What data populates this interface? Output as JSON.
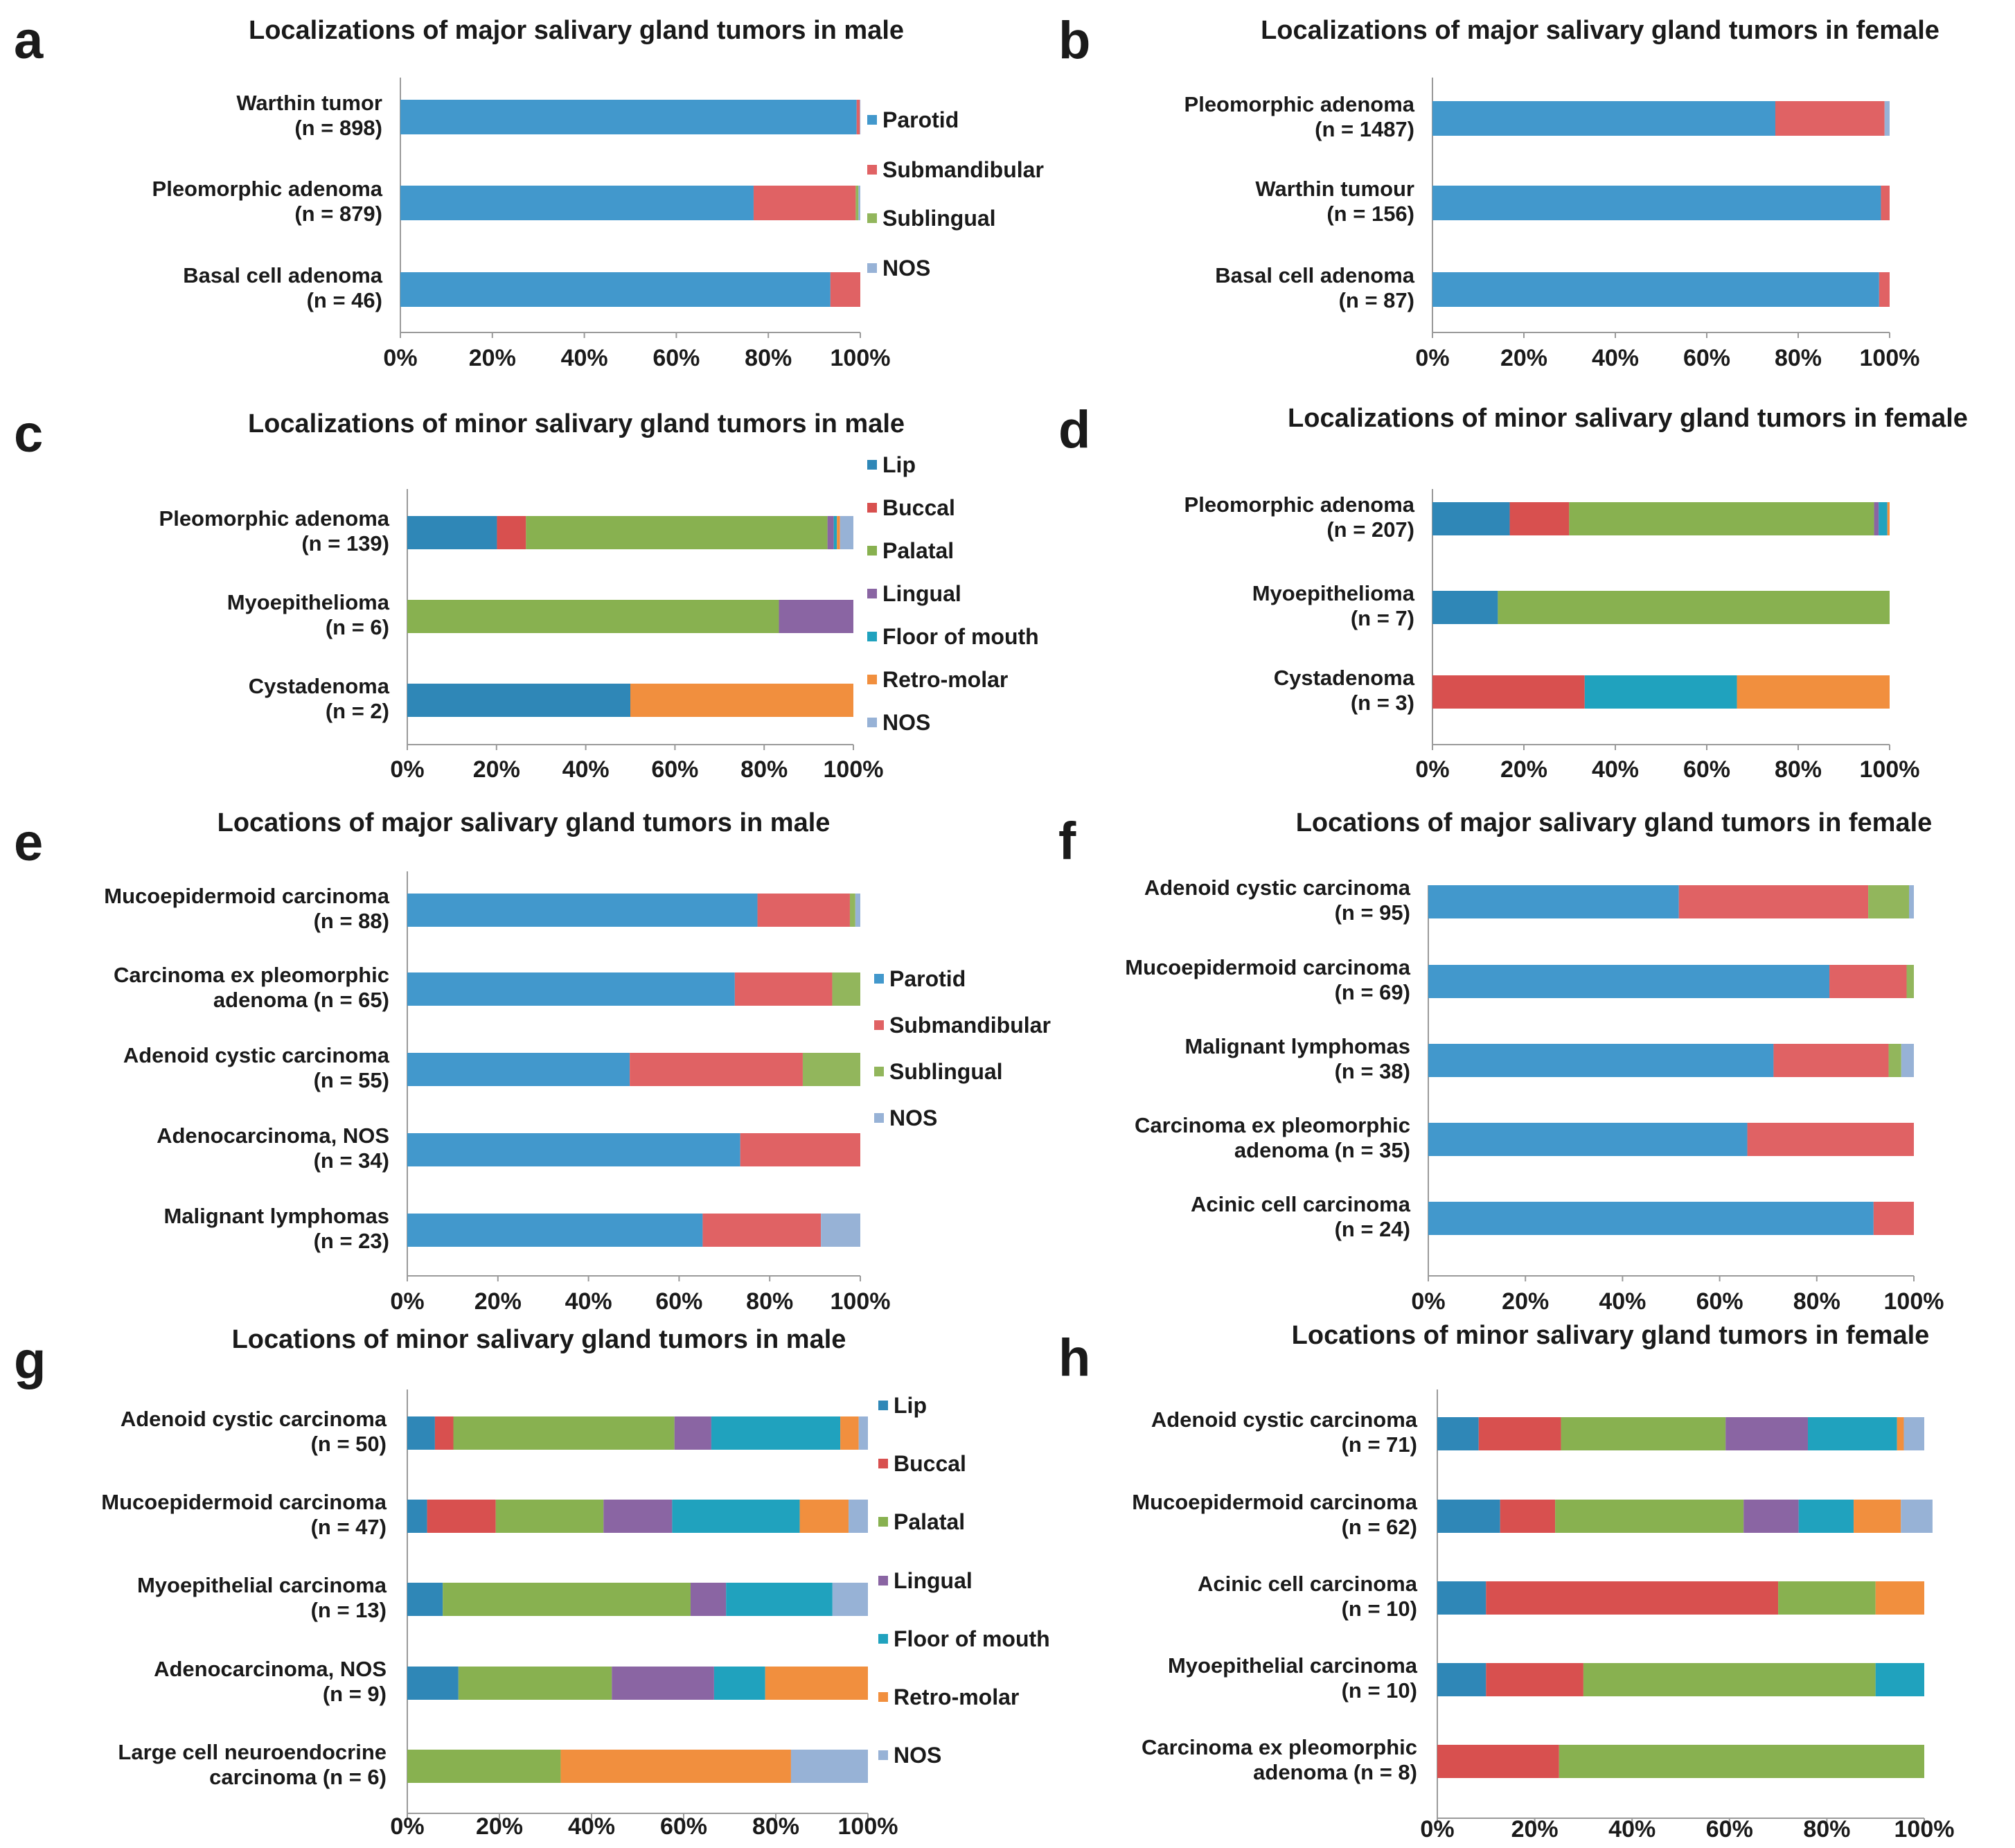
{
  "figure_name": "salivary-gland-tumor-localization-figure",
  "colors": {
    "Parotid": "#4298cc",
    "Submandibular": "#e06264",
    "Sublingual": "#92b65c",
    "Lip": "#2f87b7",
    "Buccal": "#d8504f",
    "Palatal": "#88b150",
    "Lingual": "#8a65a3",
    "Floor of mouth": "#20a2be",
    "Retro-molar": "#f18f3e",
    "NOS": "#97b2d6"
  },
  "chart_data": [
    {
      "panel": "a",
      "type": "bar",
      "stacked": true,
      "orientation": "horizontal",
      "title": "Localizations of major salivary gland tumors in male",
      "categories": [
        [
          "Warthin tumor",
          "(n = 898)"
        ],
        [
          "Pleomorphic adenoma",
          "(n = 879)"
        ],
        [
          "Basal cell adenoma",
          "(n = 46)"
        ]
      ],
      "xticks": [
        "0%",
        "20%",
        "40%",
        "60%",
        "80%",
        "100%"
      ],
      "xlim": [
        0,
        100
      ],
      "legend": [
        "Parotid",
        "Submandibular",
        "Sublingual",
        "NOS"
      ],
      "series": [
        {
          "name": "Parotid",
          "values": [
            99.2,
            76.8,
            93.5
          ]
        },
        {
          "name": "Submandibular",
          "values": [
            0.7,
            22.2,
            6.5
          ]
        },
        {
          "name": "Sublingual",
          "values": [
            0,
            0.6,
            0
          ]
        },
        {
          "name": "NOS",
          "values": [
            0.1,
            0.4,
            0
          ]
        }
      ]
    },
    {
      "panel": "b",
      "type": "bar",
      "stacked": true,
      "orientation": "horizontal",
      "title": "Localizations of major salivary gland tumors in female",
      "categories": [
        [
          "Pleomorphic adenoma",
          "(n = 1487)"
        ],
        [
          "Warthin tumour",
          "(n = 156)"
        ],
        [
          "Basal cell adenoma",
          "(n = 87)"
        ]
      ],
      "xticks": [
        "0%",
        "20%",
        "40%",
        "60%",
        "80%",
        "100%"
      ],
      "xlim": [
        0,
        100
      ],
      "legend": [],
      "series": [
        {
          "name": "Parotid",
          "values": [
            75.0,
            98.1,
            97.7
          ]
        },
        {
          "name": "Submandibular",
          "values": [
            23.9,
            1.9,
            2.3
          ]
        },
        {
          "name": "Sublingual",
          "values": [
            0,
            0,
            0
          ]
        },
        {
          "name": "NOS",
          "values": [
            1.1,
            0,
            0
          ]
        }
      ]
    },
    {
      "panel": "c",
      "type": "bar",
      "stacked": true,
      "orientation": "horizontal",
      "title": "Localizations of minor salivary gland tumors in male",
      "categories": [
        [
          "Pleomorphic adenoma",
          "(n = 139)"
        ],
        [
          "Myoepithelioma",
          "(n = 6)"
        ],
        [
          "Cystadenoma",
          "(n = 2)"
        ]
      ],
      "xticks": [
        "0%",
        "20%",
        "40%",
        "60%",
        "80%",
        "100%"
      ],
      "xlim": [
        0,
        100
      ],
      "legend": [
        "Lip",
        "Buccal",
        "Palatal",
        "Lingual",
        "Floor of mouth",
        "Retro-molar",
        "NOS"
      ],
      "series": [
        {
          "name": "Lip",
          "values": [
            20.1,
            0,
            50
          ]
        },
        {
          "name": "Buccal",
          "values": [
            6.5,
            0,
            0
          ]
        },
        {
          "name": "Palatal",
          "values": [
            67.6,
            83.3,
            0
          ]
        },
        {
          "name": "Lingual",
          "values": [
            1.4,
            16.7,
            0
          ]
        },
        {
          "name": "Floor of mouth",
          "values": [
            0.7,
            0,
            0
          ]
        },
        {
          "name": "Retro-molar",
          "values": [
            0.7,
            0,
            50
          ]
        },
        {
          "name": "NOS",
          "values": [
            3.0,
            0,
            0
          ]
        }
      ]
    },
    {
      "panel": "d",
      "type": "bar",
      "stacked": true,
      "orientation": "horizontal",
      "title": "Localizations of minor salivary gland tumors in female",
      "categories": [
        [
          "Pleomorphic adenoma",
          "(n = 207)"
        ],
        [
          "Myoepithelioma",
          "(n = 7)"
        ],
        [
          "Cystadenoma",
          "(n = 3)"
        ]
      ],
      "xticks": [
        "0%",
        "20%",
        "40%",
        "60%",
        "80%",
        "100%"
      ],
      "xlim": [
        0,
        100
      ],
      "legend": [],
      "series": [
        {
          "name": "Lip",
          "values": [
            16.9,
            14.3,
            0
          ]
        },
        {
          "name": "Buccal",
          "values": [
            13.0,
            0,
            33.3
          ]
        },
        {
          "name": "Palatal",
          "values": [
            66.7,
            85.7,
            0
          ]
        },
        {
          "name": "Lingual",
          "values": [
            1.0,
            0,
            0
          ]
        },
        {
          "name": "Floor of mouth",
          "values": [
            1.9,
            0,
            33.3
          ]
        },
        {
          "name": "Retro-molar",
          "values": [
            0.5,
            0,
            33.4
          ]
        },
        {
          "name": "NOS",
          "values": [
            0,
            0,
            0
          ]
        }
      ]
    },
    {
      "panel": "e",
      "type": "bar",
      "stacked": true,
      "orientation": "horizontal",
      "title": "Locations of major salivary gland tumors in male",
      "categories": [
        [
          "Mucoepidermoid carcinoma",
          "(n = 88)"
        ],
        [
          "Carcinoma ex pleomorphic",
          "adenoma (n = 65)"
        ],
        [
          "Adenoid cystic carcinoma",
          "(n = 55)"
        ],
        [
          "Adenocarcinoma, NOS",
          "(n = 34)"
        ],
        [
          "Malignant lymphomas",
          "(n = 23)"
        ]
      ],
      "xticks": [
        "0%",
        "20%",
        "40%",
        "60%",
        "80%",
        "100%"
      ],
      "xlim": [
        0,
        100
      ],
      "legend": [
        "Parotid",
        "Submandibular",
        "Sublingual",
        "NOS"
      ],
      "series": [
        {
          "name": "Parotid",
          "values": [
            77.3,
            72.3,
            49.1,
            73.5,
            65.2
          ]
        },
        {
          "name": "Submandibular",
          "values": [
            20.4,
            21.5,
            38.2,
            26.5,
            26.1
          ]
        },
        {
          "name": "Sublingual",
          "values": [
            1.2,
            6.2,
            12.7,
            0,
            0
          ]
        },
        {
          "name": "NOS",
          "values": [
            1.1,
            0,
            0,
            0,
            8.7
          ]
        }
      ]
    },
    {
      "panel": "f",
      "type": "bar",
      "stacked": true,
      "orientation": "horizontal",
      "title": "Locations of major salivary gland tumors in female",
      "categories": [
        [
          "Adenoid cystic carcinoma",
          "(n = 95)"
        ],
        [
          "Mucoepidermoid carcinoma",
          "(n = 69)"
        ],
        [
          "Malignant lymphomas",
          "(n = 38)"
        ],
        [
          "Carcinoma ex pleomorphic",
          "adenoma (n = 35)"
        ],
        [
          "Acinic cell carcinoma",
          "(n = 24)"
        ]
      ],
      "xticks": [
        "0%",
        "20%",
        "40%",
        "60%",
        "80%",
        "100%"
      ],
      "xlim": [
        0,
        100
      ],
      "legend": [],
      "series": [
        {
          "name": "Parotid",
          "values": [
            51.6,
            82.6,
            71.1,
            65.7,
            91.7
          ]
        },
        {
          "name": "Submandibular",
          "values": [
            39.0,
            15.9,
            23.7,
            34.3,
            8.3
          ]
        },
        {
          "name": "Sublingual",
          "values": [
            8.4,
            1.5,
            2.6,
            0,
            0
          ]
        },
        {
          "name": "NOS",
          "values": [
            1.0,
            0,
            2.6,
            0,
            0
          ]
        }
      ]
    },
    {
      "panel": "g",
      "type": "bar",
      "stacked": true,
      "orientation": "horizontal",
      "title": "Locations of minor salivary gland tumors in male",
      "categories": [
        [
          "Adenoid cystic carcinoma",
          "(n = 50)"
        ],
        [
          "Mucoepidermoid carcinoma",
          "(n = 47)"
        ],
        [
          "Myoepithelial carcinoma",
          "(n = 13)"
        ],
        [
          "Adenocarcinoma, NOS",
          "(n = 9)"
        ],
        [
          "Large cell neuroendocrine",
          "carcinoma (n = 6)"
        ]
      ],
      "xticks": [
        "0%",
        "20%",
        "40%",
        "60%",
        "80%",
        "100%"
      ],
      "xlim": [
        0,
        100
      ],
      "legend": [
        "Lip",
        "Buccal",
        "Palatal",
        "Lingual",
        "Floor of mouth",
        "Retro-molar",
        "NOS"
      ],
      "series": [
        {
          "name": "Lip",
          "values": [
            6,
            4.3,
            7.7,
            11.1,
            0
          ]
        },
        {
          "name": "Buccal",
          "values": [
            4,
            14.9,
            0,
            0,
            0
          ]
        },
        {
          "name": "Palatal",
          "values": [
            48,
            23.4,
            53.8,
            33.3,
            33.3
          ]
        },
        {
          "name": "Lingual",
          "values": [
            8,
            14.9,
            7.7,
            22.2,
            0
          ]
        },
        {
          "name": "Floor of mouth",
          "values": [
            28,
            27.7,
            23.1,
            11.1,
            0
          ]
        },
        {
          "name": "Retro-molar",
          "values": [
            4,
            10.6,
            0,
            22.3,
            50
          ]
        },
        {
          "name": "NOS",
          "values": [
            2,
            4.2,
            7.7,
            0,
            16.7
          ]
        }
      ]
    },
    {
      "panel": "h",
      "type": "bar",
      "stacked": true,
      "orientation": "horizontal",
      "title": "Locations of minor salivary gland tumors in female",
      "categories": [
        [
          "Adenoid cystic carcinoma",
          "(n = 71)"
        ],
        [
          "Mucoepidermoid carcinoma",
          "(n = 62)"
        ],
        [
          "Acinic cell carcinoma",
          "(n = 10)"
        ],
        [
          "Myoepithelial carcinoma",
          "(n = 10)"
        ],
        [
          "Carcinoma ex pleomorphic",
          "adenoma  (n = 8)"
        ]
      ],
      "xticks": [
        "0%",
        "20%",
        "40%",
        "60%",
        "80%",
        "100%"
      ],
      "xlim": [
        0,
        100
      ],
      "legend": [],
      "series": [
        {
          "name": "Lip",
          "values": [
            8.5,
            12.9,
            10,
            10,
            0
          ]
        },
        {
          "name": "Buccal",
          "values": [
            16.9,
            11.3,
            60,
            20,
            25
          ]
        },
        {
          "name": "Palatal",
          "values": [
            33.8,
            38.7,
            20,
            60,
            75
          ]
        },
        {
          "name": "Lingual",
          "values": [
            16.9,
            11.3,
            0,
            0,
            0
          ]
        },
        {
          "name": "Floor of mouth",
          "values": [
            18.3,
            11.3,
            0,
            10,
            0
          ]
        },
        {
          "name": "Retro-molar",
          "values": [
            1.4,
            9.7,
            10,
            0,
            0
          ]
        },
        {
          "name": "NOS",
          "values": [
            4.2,
            6.5,
            0,
            0,
            0
          ]
        }
      ]
    }
  ]
}
